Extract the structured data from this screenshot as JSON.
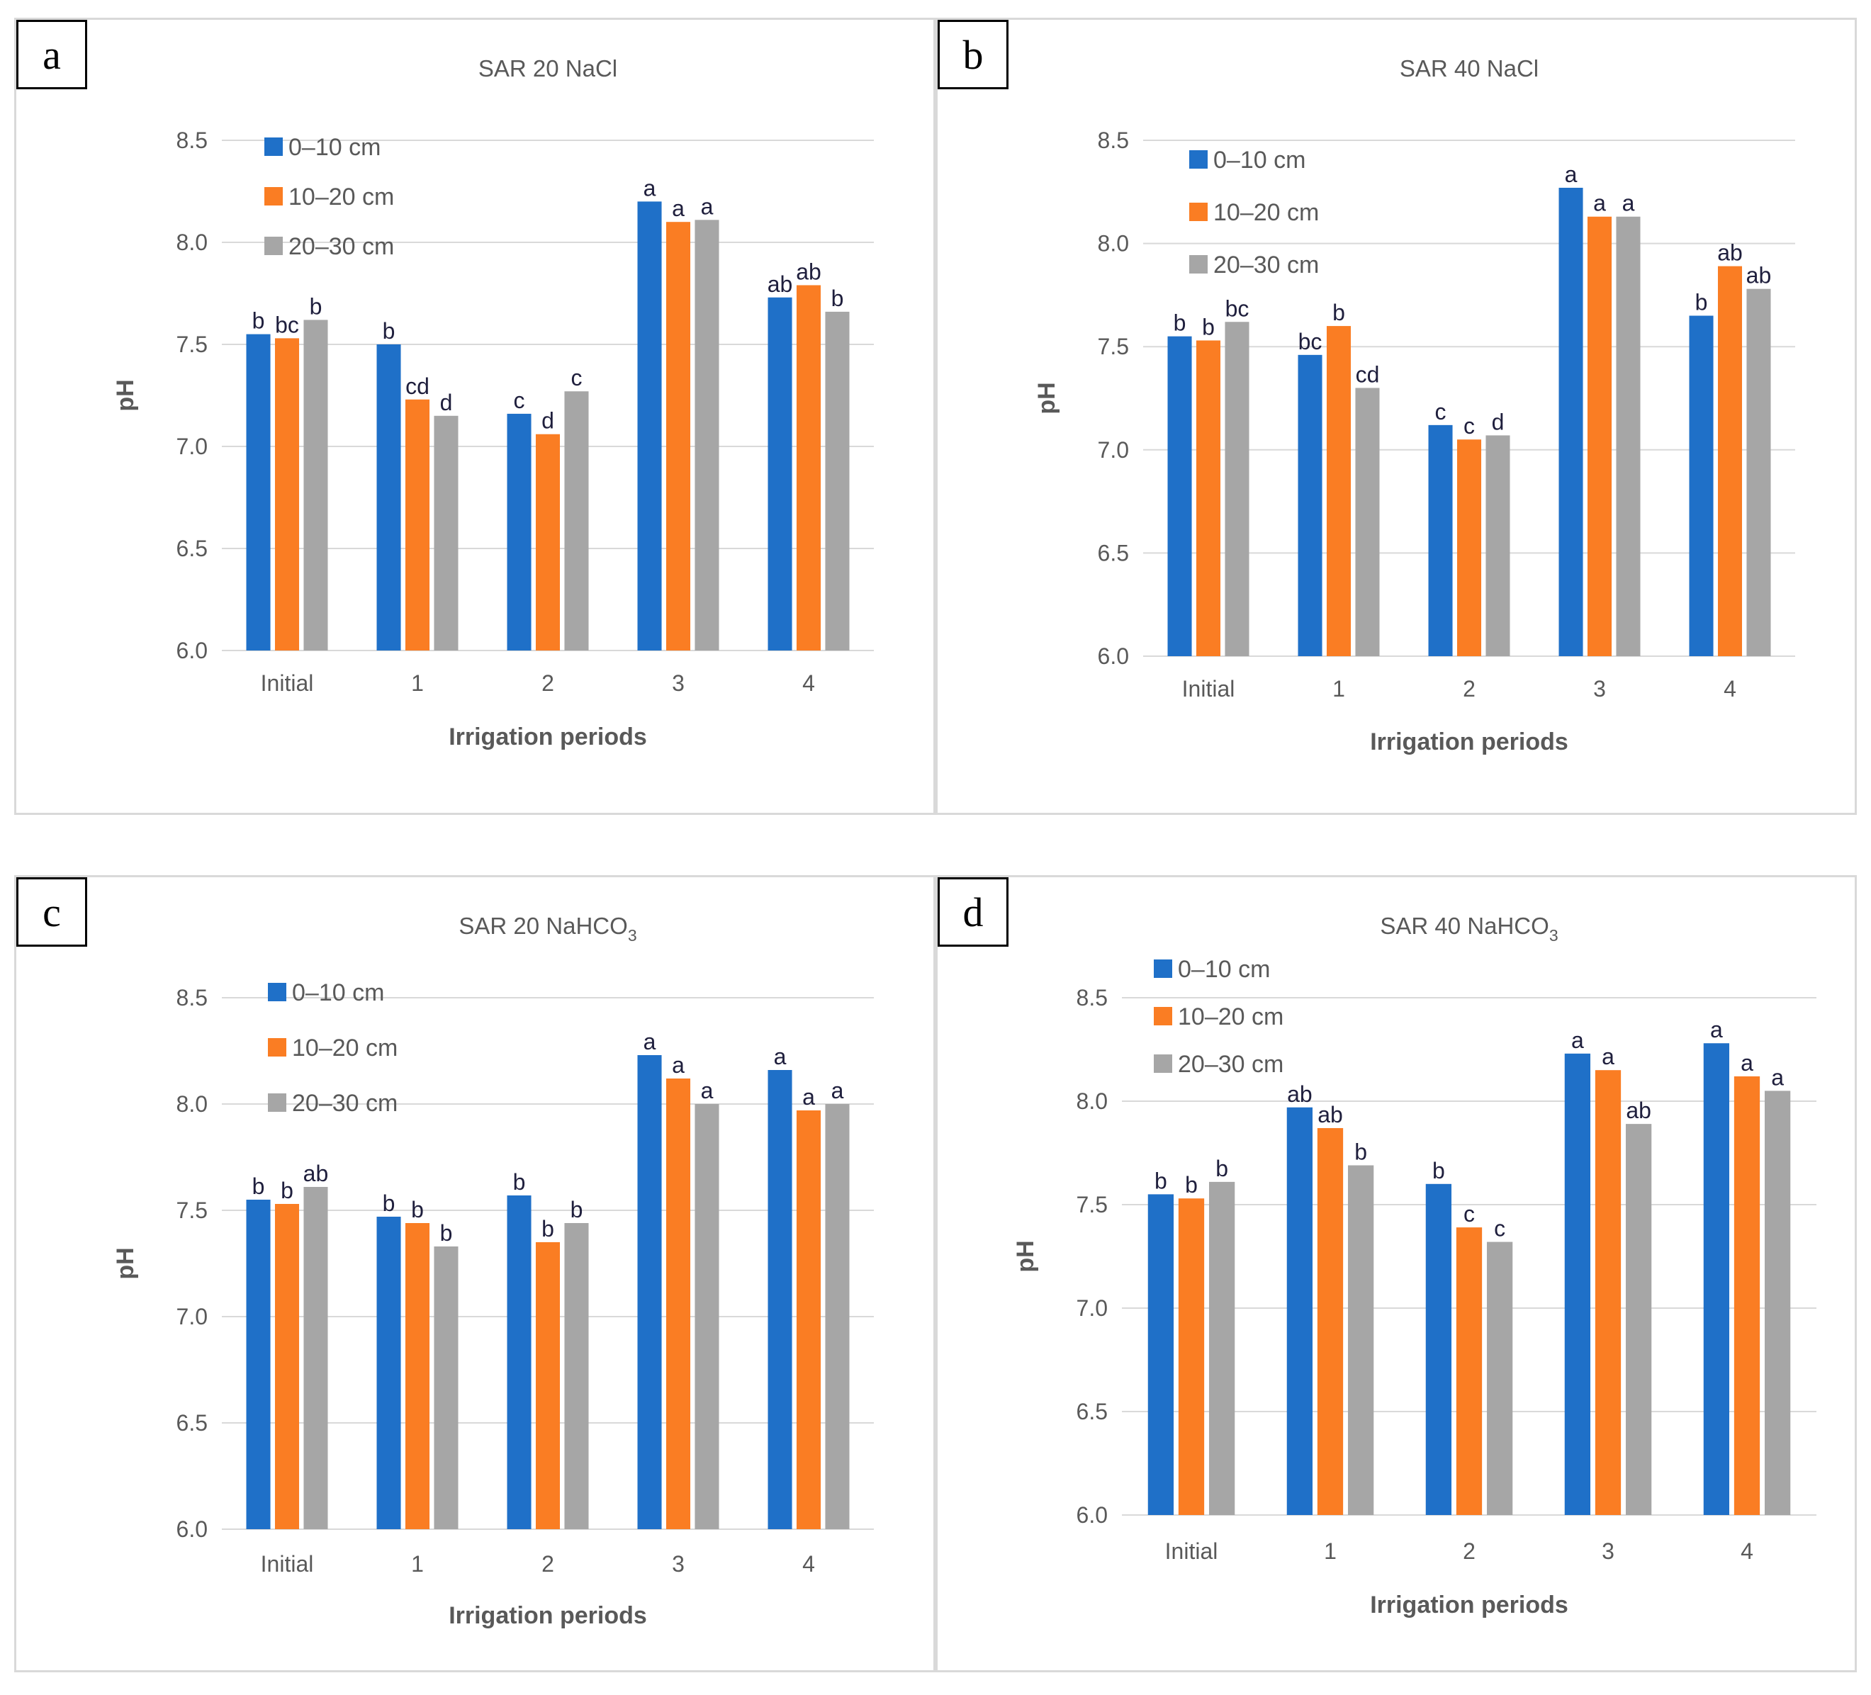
{
  "colors": {
    "s0": "#1f70c8",
    "s1": "#fa7d23",
    "s2": "#a6a6a6"
  },
  "chart_data": [
    {
      "type": "bar",
      "panel_label": "a",
      "title_main": "SAR 20 NaCl",
      "title_sub": "",
      "xlabel": "Irrigation periods",
      "ylabel": "pH",
      "ylim": [
        6.0,
        8.5
      ],
      "yticks": [
        "6.0",
        "6.5",
        "7.0",
        "7.5",
        "8.0",
        "8.5"
      ],
      "grid": true,
      "legend_position": "top-left",
      "categories": [
        "Initial",
        "1",
        "2",
        "3",
        "4"
      ],
      "series": [
        {
          "name": "0–10 cm",
          "values": [
            7.55,
            7.5,
            7.16,
            8.2,
            7.73
          ],
          "letters": [
            "b",
            "b",
            "c",
            "a",
            "ab"
          ]
        },
        {
          "name": "10–20 cm",
          "values": [
            7.53,
            7.23,
            7.06,
            8.1,
            7.79
          ],
          "letters": [
            "bc",
            "cd",
            "d",
            "a",
            "ab"
          ]
        },
        {
          "name": "20–30 cm",
          "values": [
            7.62,
            7.15,
            7.27,
            8.11,
            7.66
          ],
          "letters": [
            "b",
            "d",
            "c",
            "a",
            "b"
          ]
        }
      ]
    },
    {
      "type": "bar",
      "panel_label": "b",
      "title_main": "SAR 40 NaCl",
      "title_sub": "",
      "xlabel": "Irrigation periods",
      "ylabel": "pH",
      "ylim": [
        6.0,
        8.5
      ],
      "yticks": [
        "6.0",
        "6.5",
        "7.0",
        "7.5",
        "8.0",
        "8.5"
      ],
      "grid": true,
      "legend_position": "top-left",
      "categories": [
        "Initial",
        "1",
        "2",
        "3",
        "4"
      ],
      "series": [
        {
          "name": "0–10 cm",
          "values": [
            7.55,
            7.46,
            7.12,
            8.27,
            7.65
          ],
          "letters": [
            "b",
            "bc",
            "c",
            "a",
            "b"
          ]
        },
        {
          "name": "10–20 cm",
          "values": [
            7.53,
            7.6,
            7.05,
            8.13,
            7.89
          ],
          "letters": [
            "b",
            "b",
            "c",
            "a",
            "ab"
          ]
        },
        {
          "name": "20–30 cm",
          "values": [
            7.62,
            7.3,
            7.07,
            8.13,
            7.78
          ],
          "letters": [
            "bc",
            "cd",
            "d",
            "a",
            "ab"
          ]
        }
      ]
    },
    {
      "type": "bar",
      "panel_label": "c",
      "title_main": "SAR 20 NaHCO",
      "title_sub": "3",
      "xlabel": "Irrigation periods",
      "ylabel": "pH",
      "ylim": [
        6.0,
        8.5
      ],
      "yticks": [
        "6.0",
        "6.5",
        "7.0",
        "7.5",
        "8.0",
        "8.5"
      ],
      "grid": true,
      "legend_position": "top-left",
      "categories": [
        "Initial",
        "1",
        "2",
        "3",
        "4"
      ],
      "series": [
        {
          "name": "0–10 cm",
          "values": [
            7.55,
            7.47,
            7.57,
            8.23,
            8.16
          ],
          "letters": [
            "b",
            "b",
            "b",
            "a",
            "a"
          ]
        },
        {
          "name": "10–20 cm",
          "values": [
            7.53,
            7.44,
            7.35,
            8.12,
            7.97
          ],
          "letters": [
            "b",
            "b",
            "b",
            "a",
            "a"
          ]
        },
        {
          "name": "20–30 cm",
          "values": [
            7.61,
            7.33,
            7.44,
            8.0,
            8.0
          ],
          "letters": [
            "ab",
            "b",
            "b",
            "a",
            "a"
          ]
        }
      ]
    },
    {
      "type": "bar",
      "panel_label": "d",
      "title_main": "SAR 40 NaHCO",
      "title_sub": "3",
      "xlabel": "Irrigation periods",
      "ylabel": "pH",
      "ylim": [
        6.0,
        8.5
      ],
      "yticks": [
        "6.0",
        "6.5",
        "7.0",
        "7.5",
        "8.0",
        "8.5"
      ],
      "grid": true,
      "legend_position": "top-left",
      "categories": [
        "Initial",
        "1",
        "2",
        "3",
        "4"
      ],
      "series": [
        {
          "name": "0–10 cm",
          "values": [
            7.55,
            7.97,
            7.6,
            8.23,
            8.28
          ],
          "letters": [
            "b",
            "ab",
            "b",
            "a",
            "a"
          ]
        },
        {
          "name": "10–20 cm",
          "values": [
            7.53,
            7.87,
            7.39,
            8.15,
            8.12
          ],
          "letters": [
            "b",
            "ab",
            "c",
            "a",
            "a"
          ]
        },
        {
          "name": "20–30 cm",
          "values": [
            7.61,
            7.69,
            7.32,
            7.89,
            8.05
          ],
          "letters": [
            "b",
            "b",
            "c",
            "ab",
            "a"
          ]
        }
      ]
    }
  ]
}
